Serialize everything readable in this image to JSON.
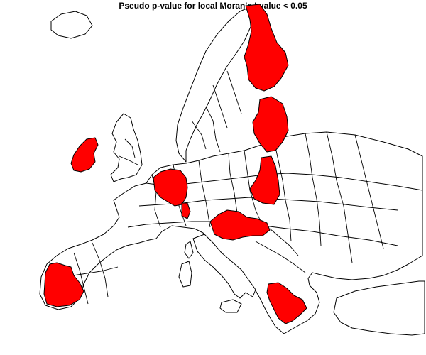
{
  "title": "Pseudo p-value for local Moran's I value < 0.05",
  "colors": {
    "significant": "#ff0000",
    "not_significant": "#ffffff",
    "border": "#000000"
  },
  "legend_meaning": {
    "significant": "p < 0.05",
    "not_significant": "p >= 0.05"
  },
  "significant_clusters": [
    "Finland",
    "Baltic states",
    "Eastern Poland",
    "Ireland",
    "Benelux / western Germany",
    "Austria / Hungary",
    "Portugal / western Spain",
    "Greece"
  ]
}
